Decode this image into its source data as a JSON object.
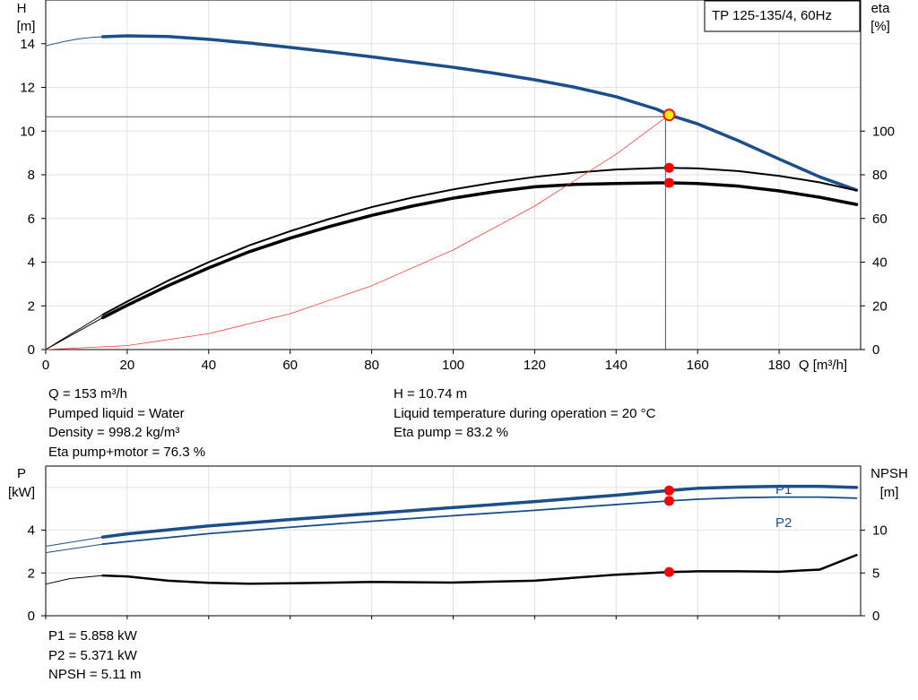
{
  "chart_data": [
    {
      "type": "line",
      "title": "TP 125-135/4, 60Hz",
      "xlabel": "Q [m³/h]",
      "ylabel": "H",
      "ylabel_unit": "[m]",
      "y2label": "eta",
      "y2label_unit": "[%]",
      "xlim": [
        0,
        200
      ],
      "ylim": [
        0,
        16
      ],
      "y2lim": [
        0,
        160
      ],
      "x_ticks": [
        0,
        20,
        40,
        60,
        80,
        100,
        120,
        140,
        160,
        180
      ],
      "y_ticks": [
        0,
        2,
        4,
        6,
        8,
        10,
        12,
        14
      ],
      "y2_ticks": [
        0,
        20,
        40,
        60,
        80,
        100
      ],
      "grid": true,
      "series": [
        {
          "id": "h-extrapolated",
          "axis": "left",
          "color": "#1a4f8c",
          "width": 1,
          "x": [
            0,
            4,
            8,
            12,
            14
          ],
          "y": [
            13.9,
            14.08,
            14.22,
            14.3,
            14.32
          ]
        },
        {
          "id": "h-curve",
          "axis": "left",
          "color": "#1a4f8c",
          "width": 3.5,
          "x": [
            14,
            20,
            30,
            40,
            50,
            60,
            70,
            80,
            90,
            100,
            110,
            120,
            130,
            140,
            150,
            153,
            160,
            170,
            180,
            190,
            199
          ],
          "y": [
            14.32,
            14.36,
            14.33,
            14.2,
            14.03,
            13.83,
            13.62,
            13.4,
            13.16,
            12.92,
            12.65,
            12.35,
            12.0,
            11.57,
            11.0,
            10.74,
            10.33,
            9.56,
            8.72,
            7.9,
            7.3
          ]
        },
        {
          "id": "eta-pump-extrapolated",
          "axis": "right",
          "color": "#000000",
          "width": 1,
          "x": [
            0,
            14
          ],
          "y": [
            0,
            16
          ]
        },
        {
          "id": "eta-pump",
          "axis": "right",
          "color": "#000000",
          "width": 2,
          "x": [
            14,
            20,
            30,
            40,
            50,
            60,
            70,
            80,
            90,
            100,
            110,
            120,
            130,
            140,
            150,
            153,
            160,
            170,
            180,
            190,
            199
          ],
          "y": [
            16,
            22,
            31.5,
            40,
            47.7,
            54.2,
            60,
            65.2,
            69.6,
            73.3,
            76.4,
            79.0,
            81.0,
            82.4,
            83.1,
            83.2,
            82.9,
            81.7,
            79.5,
            76.5,
            72.8
          ]
        },
        {
          "id": "eta-pump-motor-extrapolated",
          "axis": "right",
          "color": "#000000",
          "width": 1,
          "x": [
            0,
            14
          ],
          "y": [
            0,
            14.6
          ]
        },
        {
          "id": "eta-pump-motor",
          "axis": "right",
          "color": "#000000",
          "width": 3.5,
          "x": [
            14,
            20,
            30,
            40,
            50,
            60,
            70,
            80,
            90,
            100,
            110,
            120,
            130,
            140,
            150,
            153,
            160,
            170,
            180,
            190,
            199
          ],
          "y": [
            14.6,
            20.3,
            29.2,
            37.4,
            44.8,
            51.0,
            56.5,
            61.4,
            65.7,
            69.3,
            72.2,
            74.5,
            75.6,
            76.0,
            76.3,
            76.3,
            76.0,
            74.8,
            72.6,
            69.7,
            66.4
          ]
        },
        {
          "id": "system-curve",
          "axis": "left",
          "color": "#ff3b30",
          "width": 0.8,
          "x": [
            0,
            20,
            40,
            60,
            80,
            100,
            120,
            140,
            153
          ],
          "y": [
            0,
            0.18,
            0.73,
            1.64,
            2.92,
            4.56,
            6.57,
            8.94,
            10.74
          ]
        }
      ],
      "duty_point": {
        "x": 153,
        "h": 10.74,
        "eta_pump": 83.2,
        "eta_pump_motor": 76.3
      }
    },
    {
      "type": "line",
      "xlim": [
        0,
        200
      ],
      "ylabel": "P",
      "ylabel_unit": "[kW]",
      "y2label": "NPSH",
      "y2label_unit": "[m]",
      "ylim": [
        0,
        7
      ],
      "y2lim": [
        0,
        17.5
      ],
      "y_ticks": [
        0,
        2,
        4
      ],
      "y2_ticks": [
        0,
        5,
        10
      ],
      "x_ticks": [
        0,
        20,
        40,
        60,
        80,
        100,
        120,
        140,
        160,
        180
      ],
      "grid": true,
      "series": [
        {
          "id": "p1-extrapolated",
          "name": "P1",
          "axis": "left",
          "color": "#1a4f8c",
          "width": 1,
          "x": [
            0,
            14
          ],
          "y": [
            3.25,
            3.68
          ]
        },
        {
          "id": "p1",
          "name": "P1",
          "axis": "left",
          "color": "#1a4f8c",
          "width": 3.5,
          "label": "P1",
          "x": [
            14,
            20,
            40,
            60,
            80,
            100,
            120,
            140,
            153,
            160,
            170,
            180,
            190,
            199
          ],
          "y": [
            3.68,
            3.83,
            4.2,
            4.5,
            4.78,
            5.06,
            5.34,
            5.64,
            5.858,
            5.96,
            6.02,
            6.05,
            6.05,
            6.0
          ]
        },
        {
          "id": "p2-extrapolated",
          "name": "P2",
          "axis": "left",
          "color": "#1a4f8c",
          "width": 1,
          "x": [
            0,
            14
          ],
          "y": [
            2.95,
            3.35
          ]
        },
        {
          "id": "p2",
          "name": "P2",
          "axis": "left",
          "color": "#1a4f8c",
          "width": 1.8,
          "label": "P2",
          "x": [
            14,
            20,
            40,
            60,
            80,
            100,
            120,
            140,
            153,
            160,
            170,
            180,
            190,
            199
          ],
          "y": [
            3.35,
            3.47,
            3.84,
            4.14,
            4.42,
            4.68,
            4.93,
            5.2,
            5.371,
            5.45,
            5.52,
            5.55,
            5.55,
            5.5
          ]
        },
        {
          "id": "npsh-extrapolated",
          "axis": "right",
          "color": "#000000",
          "width": 1,
          "x": [
            0,
            6,
            14
          ],
          "y": [
            3.7,
            4.35,
            4.7
          ]
        },
        {
          "id": "npsh",
          "axis": "right",
          "color": "#000000",
          "width": 2.5,
          "x": [
            14,
            20,
            30,
            40,
            50,
            60,
            80,
            100,
            120,
            140,
            153,
            160,
            170,
            180,
            190,
            199
          ],
          "y": [
            4.7,
            4.6,
            4.1,
            3.85,
            3.75,
            3.8,
            3.95,
            3.88,
            4.1,
            4.8,
            5.11,
            5.2,
            5.2,
            5.15,
            5.4,
            7.1
          ]
        }
      ],
      "duty_point": {
        "x": 153,
        "p1": 5.858,
        "p2": 5.371,
        "npsh": 5.11
      }
    }
  ],
  "info_main": {
    "q": "Q = 153 m³/h",
    "liquid": "Pumped liquid = Water",
    "density": "Density = 998.2 kg/m³",
    "eta_pm": "Eta pump+motor = 76.3 %",
    "h": "H = 10.74 m",
    "temp": "Liquid temperature during operation = 20 °C",
    "eta_pump": "Eta pump = 83.2 %"
  },
  "info_power": {
    "p1": "P1 = 5.858 kW",
    "p2": "P2 = 5.371 kW",
    "npsh": "NPSH = 5.11 m"
  },
  "colors": {
    "curve_blue": "#1a4f8c",
    "system_red": "#ff3b30",
    "marker_red": "#ff0000",
    "marker_yellow": "#ffee00",
    "grid": "#e2e2e2"
  }
}
